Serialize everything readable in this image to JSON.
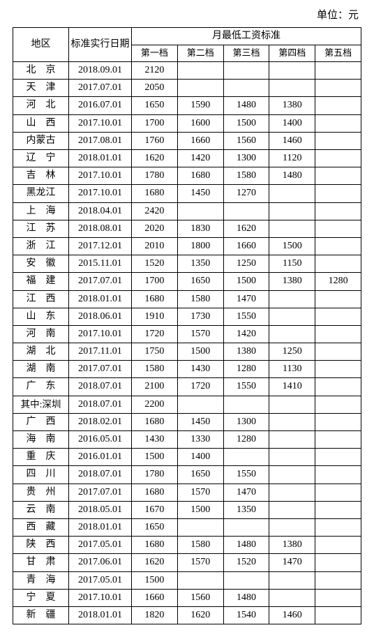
{
  "unit_label": "单位：元",
  "header": {
    "region": "地区",
    "date": "标准实行日期",
    "wage_group": "月最低工资标准",
    "tiers": [
      "第一档",
      "第二档",
      "第三档",
      "第四档",
      "第五档"
    ]
  },
  "rows": [
    {
      "region": "北　京",
      "date": "2018.09.01",
      "t1": "2120",
      "t2": "",
      "t3": "",
      "t4": "",
      "t5": ""
    },
    {
      "region": "天　津",
      "date": "2017.07.01",
      "t1": "2050",
      "t2": "",
      "t3": "",
      "t4": "",
      "t5": ""
    },
    {
      "region": "河　北",
      "date": "2016.07.01",
      "t1": "1650",
      "t2": "1590",
      "t3": "1480",
      "t4": "1380",
      "t5": ""
    },
    {
      "region": "山　西",
      "date": "2017.10.01",
      "t1": "1700",
      "t2": "1600",
      "t3": "1500",
      "t4": "1400",
      "t5": ""
    },
    {
      "region": "内蒙古",
      "date": "2017.08.01",
      "t1": "1760",
      "t2": "1660",
      "t3": "1560",
      "t4": "1460",
      "t5": ""
    },
    {
      "region": "辽　宁",
      "date": "2018.01.01",
      "t1": "1620",
      "t2": "1420",
      "t3": "1300",
      "t4": "1120",
      "t5": ""
    },
    {
      "region": "吉　林",
      "date": "2017.10.01",
      "t1": "1780",
      "t2": "1680",
      "t3": "1580",
      "t4": "1480",
      "t5": ""
    },
    {
      "region": "黑龙江",
      "date": "2017.10.01",
      "t1": "1680",
      "t2": "1450",
      "t3": "1270",
      "t4": "",
      "t5": ""
    },
    {
      "region": "上　海",
      "date": "2018.04.01",
      "t1": "2420",
      "t2": "",
      "t3": "",
      "t4": "",
      "t5": ""
    },
    {
      "region": "江　苏",
      "date": "2018.08.01",
      "t1": "2020",
      "t2": "1830",
      "t3": "1620",
      "t4": "",
      "t5": ""
    },
    {
      "region": "浙　江",
      "date": "2017.12.01",
      "t1": "2010",
      "t2": "1800",
      "t3": "1660",
      "t4": "1500",
      "t5": ""
    },
    {
      "region": "安　徽",
      "date": "2015.11.01",
      "t1": "1520",
      "t2": "1350",
      "t3": "1250",
      "t4": "1150",
      "t5": ""
    },
    {
      "region": "福　建",
      "date": "2017.07.01",
      "t1": "1700",
      "t2": "1650",
      "t3": "1500",
      "t4": "1380",
      "t5": "1280"
    },
    {
      "region": "江　西",
      "date": "2018.01.01",
      "t1": "1680",
      "t2": "1580",
      "t3": "1470",
      "t4": "",
      "t5": ""
    },
    {
      "region": "山　东",
      "date": "2018.06.01",
      "t1": "1910",
      "t2": "1730",
      "t3": "1550",
      "t4": "",
      "t5": ""
    },
    {
      "region": "河　南",
      "date": "2017.10.01",
      "t1": "1720",
      "t2": "1570",
      "t3": "1420",
      "t4": "",
      "t5": ""
    },
    {
      "region": "湖　北",
      "date": "2017.11.01",
      "t1": "1750",
      "t2": "1500",
      "t3": "1380",
      "t4": "1250",
      "t5": ""
    },
    {
      "region": "湖　南",
      "date": "2017.07.01",
      "t1": "1580",
      "t2": "1430",
      "t3": "1280",
      "t4": "1130",
      "t5": ""
    },
    {
      "region": "广　东",
      "date": "2018.07.01",
      "t1": "2100",
      "t2": "1720",
      "t3": "1550",
      "t4": "1410",
      "t5": ""
    },
    {
      "region": "其中:深圳",
      "date": "2018.07.01",
      "t1": "2200",
      "t2": "",
      "t3": "",
      "t4": "",
      "t5": "",
      "special": true
    },
    {
      "region": "广　西",
      "date": "2018.02.01",
      "t1": "1680",
      "t2": "1450",
      "t3": "1300",
      "t4": "",
      "t5": ""
    },
    {
      "region": "海　南",
      "date": "2016.05.01",
      "t1": "1430",
      "t2": "1330",
      "t3": "1280",
      "t4": "",
      "t5": ""
    },
    {
      "region": "重　庆",
      "date": "2016.01.01",
      "t1": "1500",
      "t2": "1400",
      "t3": "",
      "t4": "",
      "t5": ""
    },
    {
      "region": "四　川",
      "date": "2018.07.01",
      "t1": "1780",
      "t2": "1650",
      "t3": "1550",
      "t4": "",
      "t5": ""
    },
    {
      "region": "贵　州",
      "date": "2017.07.01",
      "t1": "1680",
      "t2": "1570",
      "t3": "1470",
      "t4": "",
      "t5": ""
    },
    {
      "region": "云　南",
      "date": "2018.05.01",
      "t1": "1670",
      "t2": "1500",
      "t3": "1350",
      "t4": "",
      "t5": ""
    },
    {
      "region": "西　藏",
      "date": "2018.01.01",
      "t1": "1650",
      "t2": "",
      "t3": "",
      "t4": "",
      "t5": ""
    },
    {
      "region": "陕　西",
      "date": "2017.05.01",
      "t1": "1680",
      "t2": "1580",
      "t3": "1480",
      "t4": "1380",
      "t5": ""
    },
    {
      "region": "甘　肃",
      "date": "2017.06.01",
      "t1": "1620",
      "t2": "1570",
      "t3": "1520",
      "t4": "1470",
      "t5": ""
    },
    {
      "region": "青　海",
      "date": "2017.05.01",
      "t1": "1500",
      "t2": "",
      "t3": "",
      "t4": "",
      "t5": ""
    },
    {
      "region": "宁　夏",
      "date": "2017.10.01",
      "t1": "1660",
      "t2": "1560",
      "t3": "1480",
      "t4": "",
      "t5": ""
    },
    {
      "region": "新　疆",
      "date": "2018.01.01",
      "t1": "1820",
      "t2": "1620",
      "t3": "1540",
      "t4": "1460",
      "t5": ""
    }
  ]
}
